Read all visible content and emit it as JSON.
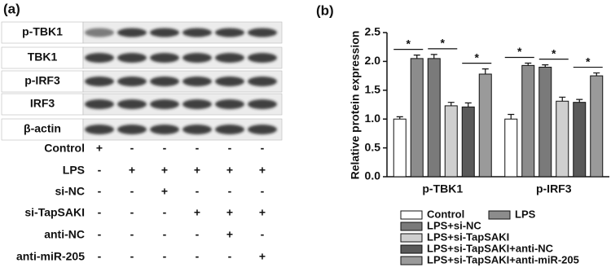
{
  "panel_a": {
    "label": "(a)",
    "blots": [
      "p-TBK1",
      "TBK1",
      "p-IRF3",
      "IRF3",
      "β-actin"
    ],
    "treatments": [
      {
        "name": "Control",
        "signs": [
          "+",
          "-",
          "-",
          "-",
          "-",
          "-"
        ]
      },
      {
        "name": "LPS",
        "signs": [
          "-",
          "+",
          "+",
          "+",
          "+",
          "+"
        ]
      },
      {
        "name": "si-NC",
        "signs": [
          "-",
          "-",
          "+",
          "-",
          "-",
          "-"
        ]
      },
      {
        "name": "si-TapSAKI",
        "signs": [
          "-",
          "-",
          "-",
          "+",
          "+",
          "+"
        ]
      },
      {
        "name": "anti-NC",
        "signs": [
          "-",
          "-",
          "-",
          "-",
          "+",
          "-"
        ]
      },
      {
        "name": "anti-miR-205",
        "signs": [
          "-",
          "-",
          "-",
          "-",
          "-",
          "+"
        ]
      }
    ]
  },
  "chart_data": {
    "type": "bar",
    "panel_label": "(b)",
    "y_label": "Relative protein expression",
    "categories": [
      "p-TBK1",
      "p-IRF3"
    ],
    "series": [
      {
        "name": "Control",
        "color": "#ffffff",
        "values": [
          1.0,
          1.0
        ],
        "errors": [
          0.04,
          0.08
        ]
      },
      {
        "name": "LPS",
        "color": "#8c8c8c",
        "values": [
          2.05,
          1.93
        ],
        "errors": [
          0.06,
          0.04
        ]
      },
      {
        "name": "LPS+si-NC",
        "color": "#7a7a7a",
        "values": [
          2.05,
          1.9
        ],
        "errors": [
          0.07,
          0.04
        ]
      },
      {
        "name": "LPS+si-TapSAKI",
        "color": "#cfcfcf",
        "values": [
          1.23,
          1.31
        ],
        "errors": [
          0.06,
          0.07
        ]
      },
      {
        "name": "LPS+si-TapSAKI+anti-NC",
        "color": "#595959",
        "values": [
          1.21,
          1.29
        ],
        "errors": [
          0.07,
          0.05
        ]
      },
      {
        "name": "LPS+si-TapSAKI+anti-miR-205",
        "color": "#9a9a9a",
        "values": [
          1.78,
          1.75
        ],
        "errors": [
          0.09,
          0.05
        ]
      }
    ],
    "significance": [
      {
        "text": "*",
        "category": 0,
        "pair": [
          0,
          1
        ]
      },
      {
        "text": "*",
        "category": 0,
        "pair": [
          2,
          3
        ]
      },
      {
        "text": "*",
        "category": 0,
        "pair": [
          4,
          5
        ]
      },
      {
        "text": "*",
        "category": 1,
        "pair": [
          0,
          1
        ]
      },
      {
        "text": "*",
        "category": 1,
        "pair": [
          2,
          3
        ]
      },
      {
        "text": "*",
        "category": 1,
        "pair": [
          4,
          5
        ]
      }
    ],
    "ylim": [
      0,
      2.5
    ],
    "yticks": [
      {
        "value": 0,
        "label": "0.0"
      },
      {
        "value": 0.5,
        "label": "0.5"
      },
      {
        "value": 1,
        "label": "1.0"
      },
      {
        "value": 1.5,
        "label": "1.5"
      },
      {
        "value": 2,
        "label": "2.0"
      },
      {
        "value": 2.5,
        "label": "2.5"
      }
    ]
  }
}
